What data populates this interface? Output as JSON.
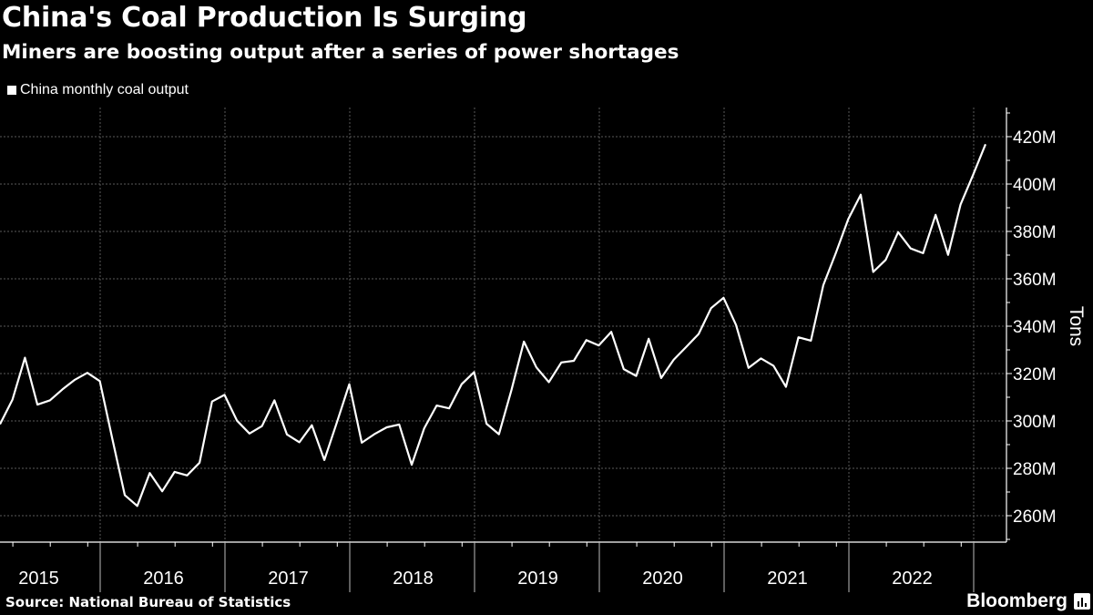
{
  "header": {
    "title": "China's Coal Production Is Surging",
    "subtitle": "Miners are boosting output after a series of power shortages"
  },
  "footer": {
    "source": "Source: National Bureau of Statistics",
    "brand": "Bloomberg"
  },
  "colors": {
    "background": "#000000",
    "line": "#ffffff",
    "grid": "#555555"
  },
  "chart_data": {
    "type": "line",
    "title": "China's Coal Production Is Surging",
    "subtitle": "Miners are boosting output after a series of power shortages",
    "ylabel": "Tons",
    "y_axis_position": "right",
    "ylim": [
      250,
      430
    ],
    "yticks": [
      260,
      280,
      300,
      320,
      340,
      360,
      380,
      400,
      420
    ],
    "ytick_labels": [
      "260M",
      "280M",
      "300M",
      "320M",
      "340M",
      "360M",
      "380M",
      "400M",
      "420M"
    ],
    "x_tick_labels": [
      "2015",
      "2016",
      "2017",
      "2018",
      "2019",
      "2020",
      "2021",
      "2022"
    ],
    "grid": true,
    "legend_position": "top-left",
    "series": [
      {
        "name": "China monthly coal output",
        "unit": "million tons",
        "values": [
          298.6,
          309,
          326.7,
          306.9,
          308.7,
          313.3,
          317.4,
          320.3,
          316.8,
          292.5,
          268.7,
          264.1,
          278,
          270.3,
          278.5,
          277,
          282.4,
          308.2,
          311,
          300.1,
          294.7,
          297.8,
          308.7,
          294.3,
          291,
          298.2,
          283.5,
          299.3,
          315.5,
          290.8,
          294.4,
          297.3,
          298.5,
          281.5,
          296.9,
          306.5,
          305.3,
          315.5,
          320.6,
          298.8,
          294.4,
          313,
          333.5,
          322.6,
          316.4,
          324.7,
          325.4,
          334.1,
          331.9,
          337.6,
          321.9,
          319,
          334.7,
          318.1,
          325.8,
          331.2,
          336.7,
          347.6,
          352,
          340.5,
          322.4,
          326.4,
          323.3,
          314.4,
          335.3,
          333.9,
          357.3,
          370.8,
          385.2,
          395.5,
          362.9,
          368,
          379.7,
          372.8,
          370.8,
          387,
          370.1,
          391.4,
          403.8,
          416.8
        ]
      }
    ]
  }
}
